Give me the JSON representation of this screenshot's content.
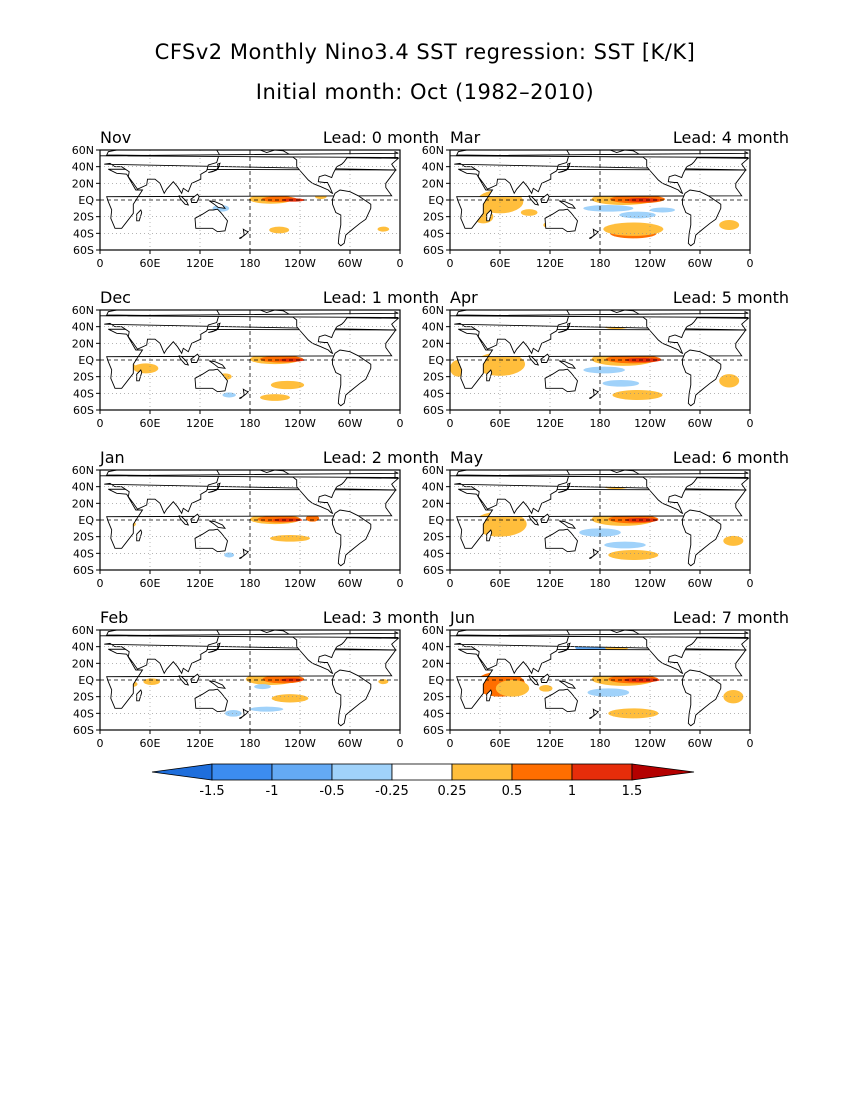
{
  "title_line1": "CFSv2 Monthly Nino3.4 SST regression: SST [K/K]",
  "title_line2": "Initial month: Oct (1982–2010)",
  "chart_data": {
    "type": "heatmap",
    "title": "CFSv2 Monthly Nino3.4 SST regression: SST [K/K]",
    "subtitle": "Initial month: Oct (1982–2010)",
    "lead_prefix": "Lead:",
    "lead_suffix": "month",
    "x_ticks": [
      "0",
      "60E",
      "120E",
      "180",
      "120W",
      "60W",
      "0"
    ],
    "y_ticks": [
      "60N",
      "40N",
      "20N",
      "EQ",
      "20S",
      "40S",
      "60S"
    ],
    "xlim": [
      0,
      360
    ],
    "ylim": [
      -60,
      60
    ],
    "panels": [
      {
        "month": "Nov",
        "lead": 0
      },
      {
        "month": "Mar",
        "lead": 4
      },
      {
        "month": "Dec",
        "lead": 1
      },
      {
        "month": "Apr",
        "lead": 5
      },
      {
        "month": "Jan",
        "lead": 2
      },
      {
        "month": "May",
        "lead": 6
      },
      {
        "month": "Feb",
        "lead": 3
      },
      {
        "month": "Jun",
        "lead": 7
      }
    ],
    "colorbar": {
      "labels": [
        "-1.5",
        "-1",
        "-0.5",
        "-0.25",
        "0.25",
        "0.5",
        "1",
        "1.5"
      ],
      "colors": [
        "#1e6edc",
        "#3c8cf0",
        "#64aaf5",
        "#a0d2fa",
        "#ffffff",
        "#ffbe3c",
        "#ff6e00",
        "#e62d0a",
        "#b40000"
      ]
    },
    "contour_colors": {
      "weak_warm": "#ffbe3c",
      "moderate_warm": "#ff6e00",
      "strong_warm": "#e62d0a",
      "extreme_warm": "#b40000",
      "weak_cool": "#a0d2fa",
      "moderate_cool": "#64aaf5"
    }
  }
}
